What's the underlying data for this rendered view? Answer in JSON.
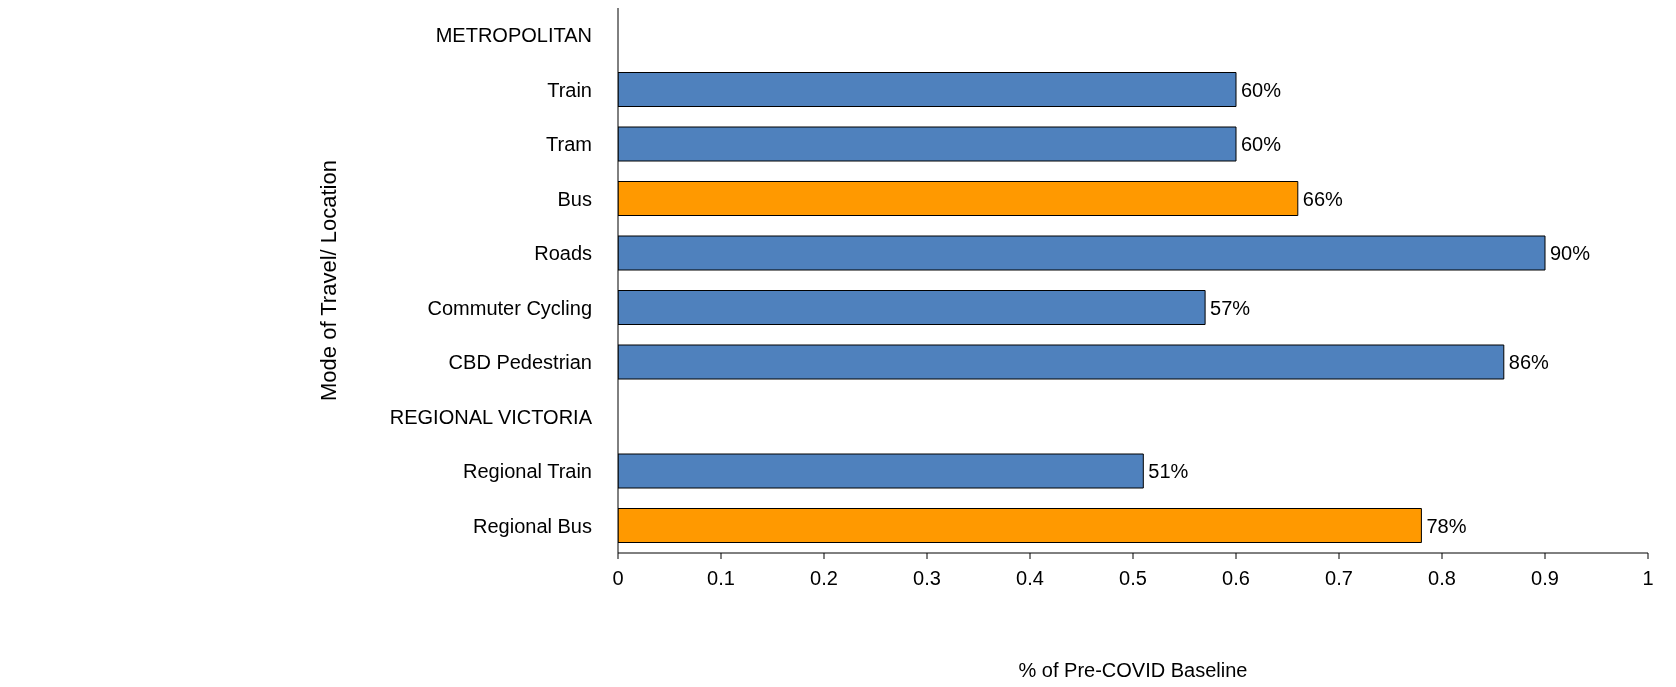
{
  "chart_data": {
    "type": "bar",
    "orientation": "horizontal",
    "xlabel": "% of Pre-COVID Baseline",
    "ylabel": "Mode of Travel/ Location",
    "categories": [
      "METROPOLITAN",
      "Train",
      "Tram",
      "Bus",
      "Roads",
      "Commuter Cycling",
      "CBD Pedestrian",
      "REGIONAL VICTORIA",
      "Regional Train",
      "Regional Bus"
    ],
    "values": [
      null,
      0.6,
      0.6,
      0.66,
      0.9,
      0.57,
      0.86,
      null,
      0.51,
      0.78
    ],
    "value_labels": [
      null,
      "60%",
      "60%",
      "66%",
      "90%",
      "57%",
      "86%",
      null,
      "51%",
      "78%"
    ],
    "colors": [
      "#4f81bd",
      "#4f81bd",
      "#4f81bd",
      "#ff9900",
      "#4f81bd",
      "#4f81bd",
      "#4f81bd",
      "#4f81bd",
      "#4f81bd",
      "#ff9900"
    ],
    "xlim": [
      0,
      1
    ],
    "xticks": [
      0,
      0.1,
      0.2,
      0.3,
      0.4,
      0.5,
      0.6,
      0.7,
      0.8,
      0.9,
      1
    ],
    "grid": false
  }
}
